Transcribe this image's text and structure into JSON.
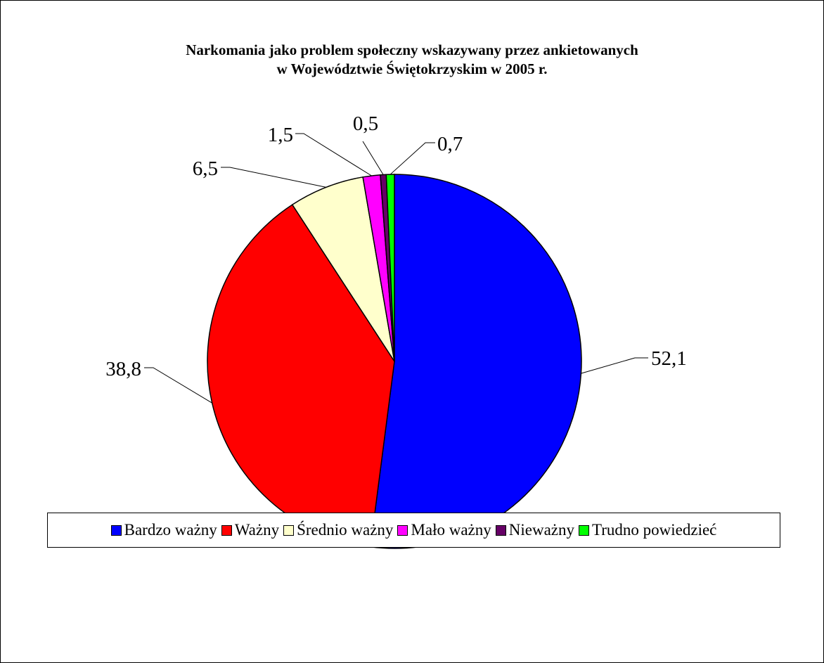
{
  "chart_data": {
    "type": "pie",
    "title_lines": [
      "Narkomania jako problem społeczny wskazywany przez ankietowanych",
      "w Województwie Świętokrzyskim w 2005 r."
    ],
    "slices": [
      {
        "label": "Bardzo ważny",
        "value": 52.1,
        "value_label": "52,1",
        "color": "#0000FF"
      },
      {
        "label": "Ważny",
        "value": 38.8,
        "value_label": "38,8",
        "color": "#FF0000"
      },
      {
        "label": "Średnio ważny",
        "value": 6.5,
        "value_label": "6,5",
        "color": "#FFFFCC"
      },
      {
        "label": "Mało ważny",
        "value": 1.5,
        "value_label": "1,5",
        "color": "#FF00FF"
      },
      {
        "label": "Nieważny",
        "value": 0.5,
        "value_label": "0,5",
        "color": "#660066"
      },
      {
        "label": "Trudno powiedzieć",
        "value": 0.7,
        "value_label": "0,7",
        "color": "#00FF00"
      }
    ],
    "legend_position": "bottom"
  }
}
